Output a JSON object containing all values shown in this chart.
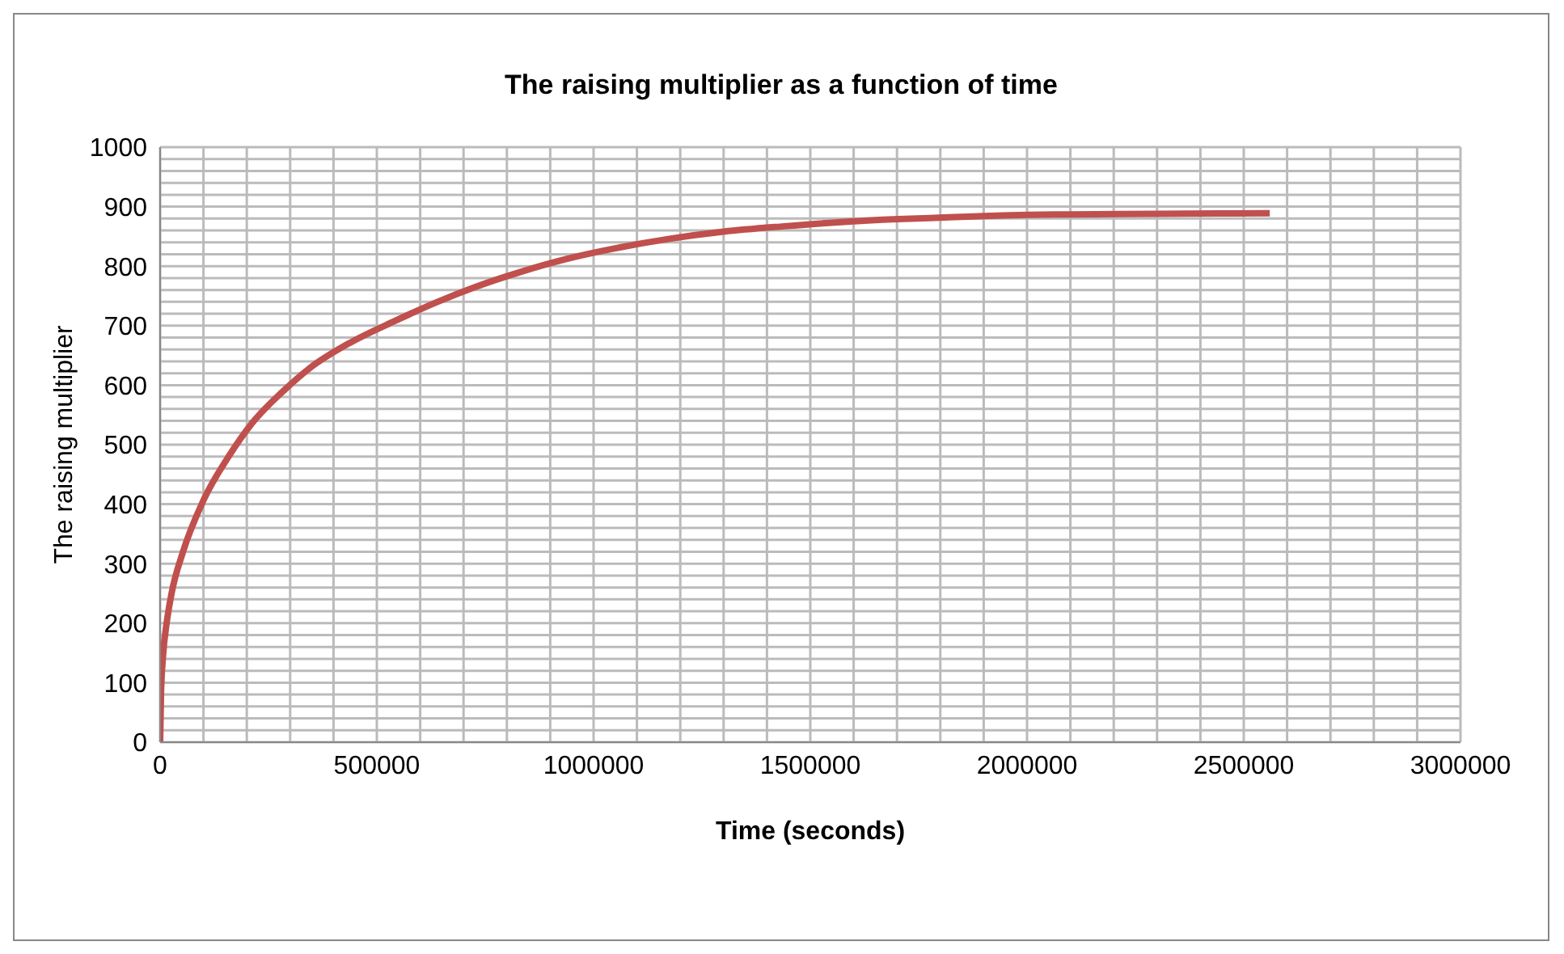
{
  "chart_data": {
    "type": "line",
    "title": "The raising multiplier as a function of time",
    "xlabel": "Time (seconds)",
    "ylabel": "The raising multiplier",
    "series": [
      {
        "color": "#c0504d",
        "x": [
          0,
          2000,
          6600,
          15000,
          26400,
          52800,
          99000,
          158000,
          212000,
          284000,
          344000,
          440000,
          542000,
          640000,
          727000,
          830000,
          937000,
          1050000,
          1175000,
          1300000,
          1439000,
          1570000,
          1703000,
          1820000,
          1928000,
          2100000,
          2300000,
          2560000
        ],
        "values": [
          0,
          80,
          144,
          200,
          250,
          320,
          405,
          480,
          536,
          590,
          628,
          672,
          708,
          740,
          765,
          790,
          812,
          830,
          846,
          858,
          867,
          874,
          879,
          882,
          885,
          887,
          888,
          889
        ]
      }
    ],
    "xlim": [
      0,
      3000000
    ],
    "xticks": [
      0,
      {
        "value": 100000,
        "label": null
      },
      {
        "value": 200000,
        "label": null
      },
      {
        "value": 300000,
        "label": null
      },
      {
        "value": 400000,
        "label": null
      },
      500000,
      {
        "value": 600000,
        "label": null
      },
      {
        "value": 700000,
        "label": null
      },
      {
        "value": 800000,
        "label": null
      },
      {
        "value": 900000,
        "label": null
      },
      1000000,
      {
        "value": 1100000,
        "label": null
      },
      {
        "value": 1200000,
        "label": null
      },
      {
        "value": 1300000,
        "label": null
      },
      {
        "value": 1400000,
        "label": null
      },
      1500000,
      {
        "value": 1600000,
        "label": null
      },
      {
        "value": 1700000,
        "label": null
      },
      {
        "value": 1800000,
        "label": null
      },
      {
        "value": 1900000,
        "label": null
      },
      2000000,
      {
        "value": 2100000,
        "label": null
      },
      {
        "value": 2200000,
        "label": null
      },
      {
        "value": 2300000,
        "label": null
      },
      {
        "value": 2400000,
        "label": null
      },
      2500000,
      {
        "value": 2600000,
        "label": null
      },
      {
        "value": 2700000,
        "label": null
      },
      {
        "value": 2800000,
        "label": null
      },
      {
        "value": 2900000,
        "label": null
      },
      3000000
    ],
    "ylim": [
      0,
      1000
    ],
    "yticks": [
      0,
      {
        "value": 20,
        "label": null
      },
      {
        "value": 40,
        "label": null
      },
      {
        "value": 60,
        "label": null
      },
      {
        "value": 80,
        "label": null
      },
      100,
      {
        "value": 120,
        "label": null
      },
      {
        "value": 140,
        "label": null
      },
      {
        "value": 160,
        "label": null
      },
      {
        "value": 180,
        "label": null
      },
      200,
      {
        "value": 220,
        "label": null
      },
      {
        "value": 240,
        "label": null
      },
      {
        "value": 260,
        "label": null
      },
      {
        "value": 280,
        "label": null
      },
      300,
      {
        "value": 320,
        "label": null
      },
      {
        "value": 340,
        "label": null
      },
      {
        "value": 360,
        "label": null
      },
      {
        "value": 380,
        "label": null
      },
      400,
      {
        "value": 420,
        "label": null
      },
      {
        "value": 440,
        "label": null
      },
      {
        "value": 460,
        "label": null
      },
      {
        "value": 480,
        "label": null
      },
      500,
      {
        "value": 520,
        "label": null
      },
      {
        "value": 540,
        "label": null
      },
      {
        "value": 560,
        "label": null
      },
      {
        "value": 580,
        "label": null
      },
      600,
      {
        "value": 620,
        "label": null
      },
      {
        "value": 640,
        "label": null
      },
      {
        "value": 660,
        "label": null
      },
      {
        "value": 680,
        "label": null
      },
      700,
      {
        "value": 720,
        "label": null
      },
      {
        "value": 740,
        "label": null
      },
      {
        "value": 760,
        "label": null
      },
      {
        "value": 780,
        "label": null
      },
      800,
      {
        "value": 820,
        "label": null
      },
      {
        "value": 840,
        "label": null
      },
      {
        "value": 860,
        "label": null
      },
      {
        "value": 880,
        "label": null
      },
      900,
      {
        "value": 920,
        "label": null
      },
      {
        "value": 940,
        "label": null
      },
      {
        "value": 960,
        "label": null
      },
      {
        "value": 980,
        "label": null
      },
      1000
    ],
    "grid": true,
    "legend": false,
    "marker": "none",
    "line_style": "solid"
  }
}
